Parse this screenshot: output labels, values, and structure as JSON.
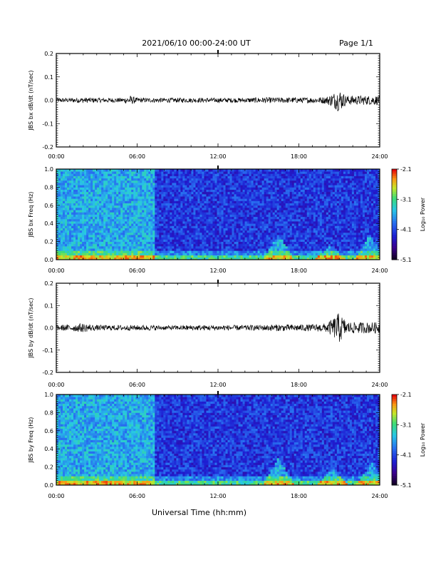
{
  "header": {
    "title": "2021/06/10  00:00-24:00 UT",
    "page_label": "Page 1/1"
  },
  "x_axis": {
    "label": "Universal Time (hh:mm)",
    "tick_labels": [
      "00:00",
      "06:00",
      "12:00",
      "18:00",
      "24:00"
    ]
  },
  "chart_data": [
    {
      "type": "line",
      "ylabel": "JBS bx dB/dt (nT/sec)",
      "xlim": [
        0,
        24
      ],
      "ylim": [
        -0.2,
        0.2
      ],
      "y_tick_labels": [
        "0.2",
        "0.1",
        "0.0",
        "-0.1",
        "-0.2"
      ],
      "y_ticks": [
        0.2,
        0.1,
        0.0,
        -0.1,
        -0.2
      ],
      "series": [
        {
          "x": [
            0,
            1,
            2,
            3,
            4,
            5,
            5.5,
            6,
            7,
            8,
            9,
            10,
            11,
            12,
            13,
            14,
            15,
            16,
            17,
            18,
            19,
            20,
            20.5,
            21,
            21.5,
            22,
            23,
            24
          ],
          "amplitude": [
            0.01,
            0.01,
            0.012,
            0.01,
            0.01,
            0.01,
            0.02,
            0.01,
            0.01,
            0.01,
            0.01,
            0.01,
            0.01,
            0.01,
            0.01,
            0.01,
            0.012,
            0.012,
            0.012,
            0.012,
            0.012,
            0.015,
            0.03,
            0.05,
            0.02,
            0.02,
            0.02,
            0.02
          ]
        }
      ]
    },
    {
      "type": "heatmap",
      "ylabel": "JBS bx Freq (Hz)",
      "xlim": [
        0,
        24
      ],
      "ylim": [
        0,
        1.0
      ],
      "y_tick_labels": [
        "1.0",
        "0.8",
        "0.6",
        "0.4",
        "0.2",
        "0.0"
      ],
      "y_ticks": [
        1.0,
        0.8,
        0.6,
        0.4,
        0.2,
        0.0
      ],
      "colorbar": {
        "label": "Log₁₀ Power",
        "ticks": [
          "-2.1",
          "-3.1",
          "-4.1",
          "-5.1"
        ],
        "range": [
          -5.1,
          -2.1
        ]
      },
      "regime_change_hour": 7.3,
      "enhancements": [
        {
          "hour": 16.5,
          "max_freq": 0.28
        },
        {
          "hour": 20.3,
          "max_freq": 0.15
        },
        {
          "hour": 23.3,
          "max_freq": 0.28
        }
      ]
    },
    {
      "type": "line",
      "ylabel": "JBS by dB/dt (nT/sec)",
      "xlim": [
        0,
        24
      ],
      "ylim": [
        -0.2,
        0.2
      ],
      "y_tick_labels": [
        "0.2",
        "0.1",
        "0.0",
        "-0.1",
        "-0.2"
      ],
      "y_ticks": [
        0.2,
        0.1,
        0.0,
        -0.1,
        -0.2
      ],
      "series": [
        {
          "x": [
            0,
            1,
            2,
            3,
            4,
            5,
            6,
            7,
            8,
            9,
            10,
            11,
            12,
            13,
            14,
            15,
            16,
            17,
            18,
            19,
            20,
            20.5,
            21,
            21.5,
            22,
            23,
            24
          ],
          "amplitude": [
            0.012,
            0.015,
            0.02,
            0.012,
            0.012,
            0.012,
            0.012,
            0.012,
            0.01,
            0.01,
            0.012,
            0.012,
            0.012,
            0.012,
            0.012,
            0.012,
            0.015,
            0.015,
            0.015,
            0.015,
            0.02,
            0.04,
            0.07,
            0.03,
            0.025,
            0.025,
            0.025
          ]
        }
      ]
    },
    {
      "type": "heatmap",
      "ylabel": "JBS by Freq (Hz)",
      "xlim": [
        0,
        24
      ],
      "ylim": [
        0,
        1.0
      ],
      "y_tick_labels": [
        "1.0",
        "0.8",
        "0.6",
        "0.4",
        "0.2",
        "0.0"
      ],
      "y_ticks": [
        1.0,
        0.8,
        0.6,
        0.4,
        0.2,
        0.0
      ],
      "colorbar": {
        "label": "Log₁₀ Power",
        "ticks": [
          "-2.1",
          "-3.1",
          "-4.1",
          "-5.1"
        ],
        "range": [
          -5.1,
          -2.1
        ]
      },
      "regime_change_hour": 7.3,
      "enhancements": [
        {
          "hour": 16.5,
          "max_freq": 0.3
        },
        {
          "hour": 20.5,
          "max_freq": 0.2
        },
        {
          "hour": 23.4,
          "max_freq": 0.25
        }
      ]
    }
  ]
}
